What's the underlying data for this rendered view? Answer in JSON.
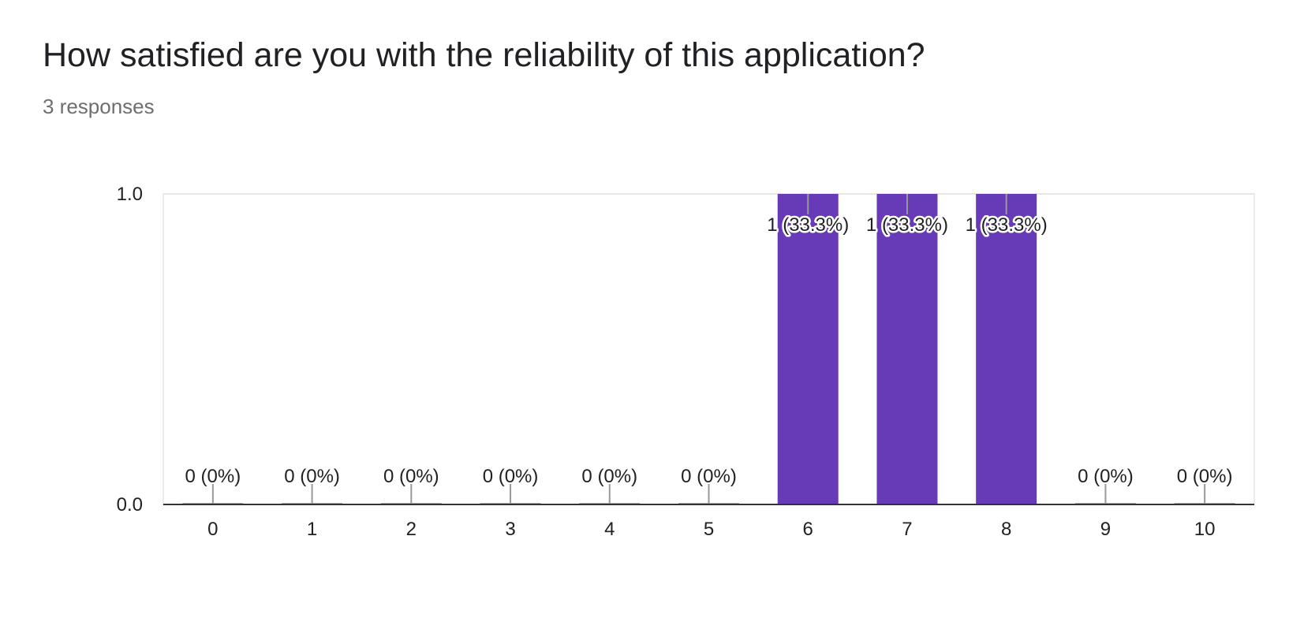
{
  "question": {
    "title": "How satisfied are you with the reliability of this application?",
    "responses": "3 responses"
  },
  "colors": {
    "bar": "#673ab7",
    "axis": "#333333",
    "grid": "#e6e6e6",
    "leader": "#999999"
  },
  "chart_data": {
    "type": "bar",
    "title": "How satisfied are you with the reliability of this application?",
    "xlabel": "",
    "ylabel": "",
    "categories": [
      "0",
      "1",
      "2",
      "3",
      "4",
      "5",
      "6",
      "7",
      "8",
      "9",
      "10"
    ],
    "values": [
      0,
      0,
      0,
      0,
      0,
      0,
      1,
      1,
      1,
      0,
      0
    ],
    "data_labels": [
      "0 (0%)",
      "0 (0%)",
      "0 (0%)",
      "0 (0%)",
      "0 (0%)",
      "0 (0%)",
      "1 (33.3%)",
      "1 (33.3%)",
      "1 (33.3%)",
      "0 (0%)",
      "0 (0%)"
    ],
    "ylim": [
      0,
      1
    ],
    "yticks": [
      "0.0",
      "1.0"
    ],
    "grid": true,
    "legend": "none"
  }
}
